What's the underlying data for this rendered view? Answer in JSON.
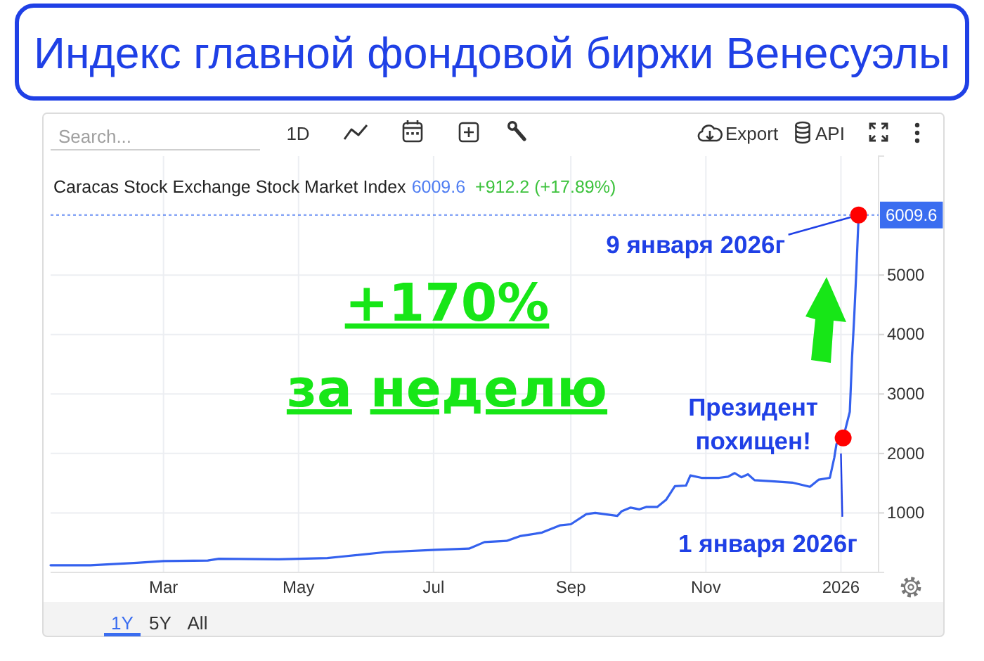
{
  "chart_data": {
    "type": "line",
    "title": "Индекс главной фондовой биржи Венесуэлы",
    "subtitle": "Caracas Stock Exchange Stock Market Index",
    "xlim": [
      "2025-01-09",
      "2026-01-18"
    ],
    "ylim": [
      0,
      7000
    ],
    "xticks": [
      {
        "value": "2025-03-01",
        "label": "Mar"
      },
      {
        "value": "2025-05-01",
        "label": "May"
      },
      {
        "value": "2025-07-01",
        "label": "Jul"
      },
      {
        "value": "2025-09-01",
        "label": "Sep"
      },
      {
        "value": "2025-11-01",
        "label": "Nov"
      },
      {
        "value": "2026-01-01",
        "label": "2026"
      }
    ],
    "yticks": [
      1000,
      2000,
      3000,
      4000,
      5000
    ],
    "grid": true,
    "ref_lines": [
      {
        "axis": "y",
        "value": 6009.6,
        "label": "6009.6",
        "color": "#3a6df0",
        "line_style": "dotted"
      }
    ],
    "series": [
      {
        "color": "#3461ee",
        "x": [
          "2025-01-09",
          "2025-01-27",
          "2025-02-17",
          "2025-03-01",
          "2025-03-21",
          "2025-03-26",
          "2025-04-22",
          "2025-05-14",
          "2025-05-19",
          "2025-06-09",
          "2025-07-02",
          "2025-07-17",
          "2025-07-24",
          "2025-08-03",
          "2025-08-09",
          "2025-08-19",
          "2025-08-27",
          "2025-09-01",
          "2025-09-08",
          "2025-09-12",
          "2025-09-22",
          "2025-09-24",
          "2025-09-28",
          "2025-10-02",
          "2025-10-05",
          "2025-10-10",
          "2025-10-14",
          "2025-10-18",
          "2025-10-23",
          "2025-10-25",
          "2025-10-30",
          "2025-11-07",
          "2025-11-11",
          "2025-11-14",
          "2025-11-17",
          "2025-11-20",
          "2025-11-23",
          "2025-12-02",
          "2025-12-10",
          "2025-12-18",
          "2025-12-22",
          "2025-12-27",
          "2025-12-29",
          "2025-12-30",
          "2026-01-02",
          "2026-01-05",
          "2026-01-06",
          "2026-01-07",
          "2026-01-08",
          "2026-01-09"
        ],
        "values": [
          120,
          120,
          160,
          190,
          200,
          230,
          220,
          240,
          260,
          340,
          380,
          400,
          510,
          530,
          610,
          670,
          790,
          810,
          980,
          1000,
          950,
          1030,
          1090,
          1060,
          1100,
          1100,
          1220,
          1450,
          1460,
          1630,
          1590,
          1590,
          1610,
          1670,
          1600,
          1650,
          1550,
          1530,
          1510,
          1440,
          1560,
          1590,
          1930,
          2160,
          2260,
          2700,
          3600,
          4300,
          5100,
          6009.6
        ]
      },
      {
        "type": "scatter",
        "color": "#ff0000",
        "marker": "circle",
        "x": [
          "2026-01-02",
          "2026-01-09"
        ],
        "values": [
          2260,
          6009.6
        ]
      }
    ],
    "annotations": [
      "Search...",
      "1D",
      "Export",
      "API",
      "6009.6",
      "+912.2 (+17.89%)",
      "+170%",
      "за неделю",
      {
        "text": "9 января 2026г",
        "x": "2026-01-09",
        "y": 6009.6
      },
      {
        "text": "Президент похищен!",
        "x": "2026-01-02",
        "y": 2260
      },
      {
        "text": "1 января 2026г",
        "x": "2026-01-01",
        "y": 2000
      },
      "1Y",
      "5Y",
      "All"
    ]
  }
}
